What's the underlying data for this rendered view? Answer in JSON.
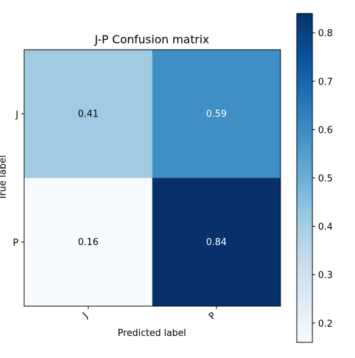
{
  "chart_data": {
    "type": "heatmap",
    "title": "J-P Confusion matrix",
    "xlabel": "Predicted label",
    "ylabel": "True label",
    "x_categories": [
      "J",
      "P"
    ],
    "y_categories": [
      "J",
      "P"
    ],
    "values": [
      [
        0.41,
        0.59
      ],
      [
        0.16,
        0.84
      ]
    ],
    "value_labels": [
      [
        "0.41",
        "0.59"
      ],
      [
        "0.16",
        "0.84"
      ]
    ],
    "colormap": "Blues",
    "color_range": [
      0.16,
      0.84
    ],
    "colorbar": {
      "ticks": [
        0.2,
        0.3,
        0.4,
        0.5,
        0.6,
        0.7,
        0.8
      ],
      "tick_labels": [
        "0.2",
        "0.3",
        "0.4",
        "0.5",
        "0.6",
        "0.7",
        "0.8"
      ]
    },
    "x_tick_rotation": -45,
    "grid": false,
    "colors": {
      "low": "#f7fbff",
      "high": "#08306b",
      "text_dark": "#000000",
      "text_light": "#ffffff"
    }
  }
}
